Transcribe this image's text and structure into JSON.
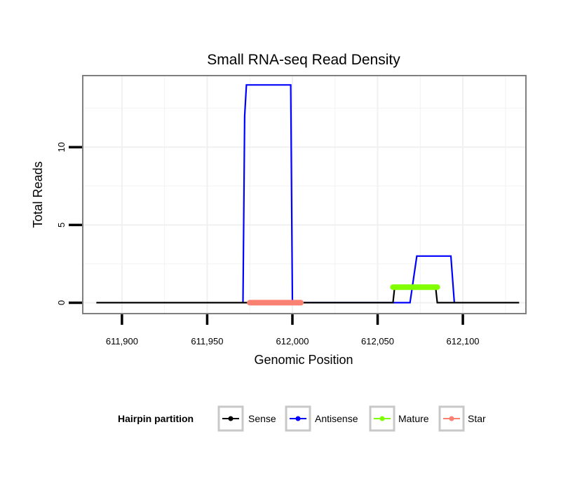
{
  "chart_data": {
    "type": "line",
    "title": "Small RNA-seq Read Density",
    "xlabel": "Genomic Position",
    "ylabel": "Total Reads",
    "xlim": [
      611877,
      612137
    ],
    "ylim": [
      -0.7,
      14.6
    ],
    "x_ticks": [
      611900,
      611950,
      612000,
      612050,
      612100
    ],
    "x_tick_labels": [
      "611,900",
      "611,950",
      "612,000",
      "612,050",
      "612,100"
    ],
    "y_ticks": [
      0,
      5,
      10
    ],
    "y_tick_labels": [
      "0",
      "5",
      "10"
    ],
    "legend": {
      "title": "Hairpin partition",
      "position": "bottom",
      "entries": [
        {
          "name": "Sense",
          "color": "#000000"
        },
        {
          "name": "Antisense",
          "color": "#0000ff"
        },
        {
          "name": "Mature",
          "color": "#7fff00"
        },
        {
          "name": "Star",
          "color": "#fa8072"
        }
      ]
    },
    "series": [
      {
        "name": "Sense",
        "color": "#000000",
        "x": [
          611885,
          612059,
          612060,
          612084,
          612085,
          612133
        ],
        "y": [
          0,
          0,
          1,
          1,
          0,
          0
        ]
      },
      {
        "name": "Antisense",
        "color": "#0000ff",
        "x": [
          611971,
          611972,
          611973,
          611999,
          612000,
          612069,
          612073,
          612093,
          612095
        ],
        "y": [
          0,
          12,
          14,
          14,
          0,
          0,
          3,
          3,
          0
        ]
      },
      {
        "name": "Mature",
        "color": "#7fff00",
        "x": [
          612059,
          612085
        ],
        "y": [
          1,
          1
        ]
      },
      {
        "name": "Star",
        "color": "#fa8072",
        "x": [
          611975,
          612005
        ],
        "y": [
          0,
          0
        ]
      }
    ]
  }
}
